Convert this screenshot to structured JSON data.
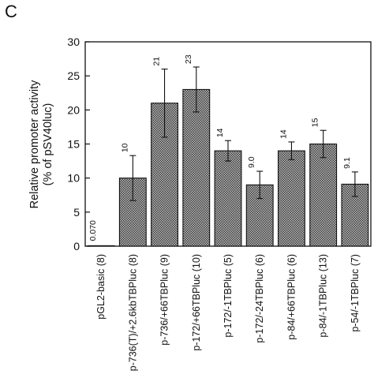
{
  "panel_letter": "C",
  "chart_data": {
    "type": "bar",
    "ylabel": "Relative promoter activity",
    "ylabel2": "(% of pSV40luc)",
    "xlabel": "",
    "ylim": [
      0,
      30
    ],
    "yticks": [
      0,
      5,
      10,
      15,
      20,
      25,
      30
    ],
    "grid": false,
    "categories": [
      "pGL2-basic (8)",
      "p-736(T)/+2.6kbTBPluc (8)",
      "p-736/+66TBPluc (9)",
      "p-172/+66TBPluc (10)",
      "p-172/-1TBPluc (5)",
      "p-172/-24TBPluc (6)",
      "p-84/+66TBPluc (6)",
      "p-84/-1TBPluc (13)",
      "p-54/-1TBPluc (7)"
    ],
    "values": [
      0.07,
      10,
      21,
      23,
      14,
      9.0,
      14,
      15,
      9.1
    ],
    "data_labels": [
      "0.070",
      "10",
      "21",
      "23",
      "14",
      "9.0",
      "14",
      "15",
      "9.1"
    ],
    "errors": [
      0,
      3.3,
      5.0,
      3.3,
      1.5,
      2.0,
      1.3,
      2.0,
      1.8
    ],
    "bar_color": "#8c8c8c"
  }
}
